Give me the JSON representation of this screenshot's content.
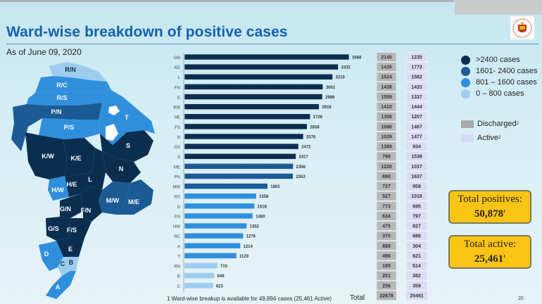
{
  "title": "Ward-wise breakdown of positive cases",
  "subtitle": "As of June 09, 2020",
  "logo_icon": "municipal-corporation-emblem-icon",
  "legend_ranges": [
    {
      "label": ">2400 cases",
      "color": "#0b2e4f"
    },
    {
      "label": "1601- 2400 cases",
      "color": "#1b5a94"
    },
    {
      "label": "801 – 1600 cases",
      "color": "#2f8fdc"
    },
    {
      "label": "0 – 800 cases",
      "color": "#9ccdf0"
    }
  ],
  "legend_columns": [
    {
      "label": "Discharged",
      "sup": "2",
      "color": "#a9a9a9"
    },
    {
      "label": "Active",
      "sup": "2",
      "color": "#d6d8f6"
    }
  ],
  "callouts": {
    "total_positives": {
      "label": "Total positives:",
      "value": "50,878",
      "sup": "1"
    },
    "total_active": {
      "label": "Total active:",
      "value": "25,461",
      "sup": "1"
    }
  },
  "footnote": "1 Ward-wise breakup is available for 49,894 cases (25,461 Active)",
  "total_label": "Total",
  "page_number": "20",
  "map": {
    "wards": [
      "R/N",
      "R/C",
      "R/S",
      "P/N",
      "P/S",
      "T",
      "K/W",
      "K/E",
      "S",
      "N",
      "L",
      "H/W",
      "H/E",
      "G/N",
      "F/N",
      "M/W",
      "M/E",
      "G/S",
      "F/S",
      "E",
      "D",
      "C",
      "B",
      "A"
    ]
  },
  "chart_data": {
    "type": "bar",
    "orientation": "horizontal",
    "title": "Ward-wise breakdown of positive cases",
    "categories": [
      "GN",
      "KE",
      "L",
      "FN",
      "E",
      "KW",
      "HE",
      "FS",
      "N",
      "GS",
      "S",
      "ME",
      "PN",
      "MW",
      "RS",
      "D",
      "PS",
      "HW",
      "RC",
      "A",
      "T",
      "RN",
      "B",
      "C"
    ],
    "values": [
      3568,
      3332,
      3210,
      3001,
      2989,
      2919,
      2726,
      2658,
      2576,
      2472,
      2417,
      2356,
      2353,
      1803,
      1558,
      1518,
      1480,
      1352,
      1276,
      1214,
      1129,
      715,
      649,
      623
    ],
    "discharged": [
      2140,
      1435,
      1524,
      1438,
      1559,
      1410,
      1358,
      1086,
      1029,
      1389,
      798,
      1220,
      690,
      727,
      527,
      773,
      634,
      475,
      370,
      898,
      496,
      195,
      251,
      256
    ],
    "active": [
      1235,
      1772,
      1582,
      1433,
      1337,
      1444,
      1207,
      1467,
      1477,
      934,
      1538,
      1037,
      1637,
      958,
      1018,
      695,
      797,
      827,
      886,
      304,
      621,
      514,
      382,
      359
    ],
    "totals": {
      "discharged": 22678,
      "active": 25461
    },
    "color_bins": [
      {
        "min": 2401,
        "color": "#0b2e4f"
      },
      {
        "min": 1601,
        "color": "#1b5a94"
      },
      {
        "min": 801,
        "color": "#2f8fdc"
      },
      {
        "min": 0,
        "color": "#9ccdf0"
      }
    ],
    "xlim": [
      0,
      3568
    ]
  }
}
